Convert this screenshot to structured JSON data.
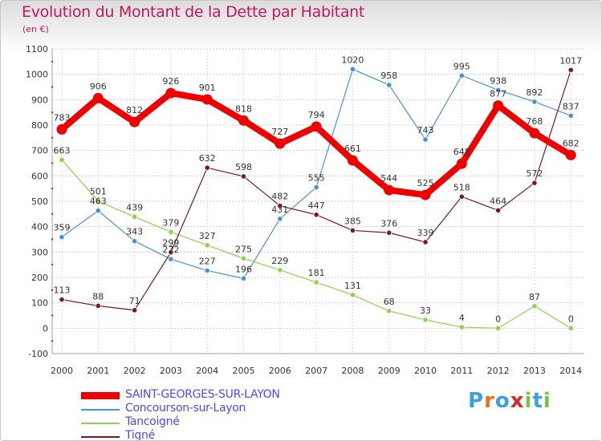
{
  "header": {
    "title": "Evolution du Montant de la Dette par Habitant",
    "unit": "(en €)"
  },
  "logo": {
    "text": "Proxiti",
    "colors": [
      "#3aa0e0",
      "#e8721c",
      "#3aa0e0",
      "#d12a2a",
      "#7cc242",
      "#3aa0e0",
      "#7cc242"
    ]
  },
  "chart_data": {
    "type": "line",
    "title": "Evolution du Montant de la Dette par Habitant",
    "subtitle": "(en €)",
    "xlabel": "",
    "ylabel": "",
    "x": [
      "2000",
      "2001",
      "2002",
      "2003",
      "2004",
      "2005",
      "2006",
      "2007",
      "2008",
      "2009",
      "2010",
      "2011",
      "2012",
      "2013",
      "2014"
    ],
    "ylim": [
      -100,
      1100
    ],
    "yticks": [
      -100,
      0,
      100,
      200,
      300,
      400,
      500,
      600,
      700,
      800,
      900,
      1000,
      1100
    ],
    "grid": true,
    "legend_position": "bottom-left",
    "series": [
      {
        "name": "SAINT-GEORGES-SUR-LAYON",
        "color": "#ee0000",
        "emphasis": true,
        "values": [
          783,
          906,
          812,
          926,
          901,
          818,
          727,
          794,
          661,
          544,
          525,
          648,
          877,
          768,
          682
        ]
      },
      {
        "name": "Concourson-sur-Layon",
        "color": "#4a90d9",
        "values": [
          359,
          463,
          343,
          272,
          227,
          196,
          431,
          555,
          1020,
          958,
          743,
          995,
          938,
          892,
          837
        ],
        "labels": [
          "359",
          "463",
          "343",
          "272",
          "227",
          "196",
          "431",
          "555",
          "1020",
          "958",
          "743",
          "995",
          "938",
          "892",
          "837"
        ]
      },
      {
        "name": "Tancoigné",
        "color": "#8ed14a",
        "values": [
          663,
          501,
          439,
          379,
          327,
          275,
          229,
          181,
          131,
          68,
          33,
          4,
          0,
          87,
          0
        ],
        "labels": [
          "663",
          "501",
          "439",
          "379",
          "327",
          "275",
          "229",
          "181",
          "131",
          "68",
          "33",
          "4",
          "0",
          "87",
          "0"
        ]
      },
      {
        "name": "Tigné",
        "color": "#7a1a1a",
        "values": [
          113,
          88,
          71,
          299,
          632,
          598,
          482,
          447,
          385,
          376,
          339,
          518,
          464,
          572,
          1017
        ],
        "labels": [
          "113",
          "88",
          "71",
          "299",
          "632",
          "598",
          "482",
          "447",
          "385",
          "376",
          "339",
          "518",
          "464",
          "572",
          "1017"
        ]
      }
    ]
  }
}
